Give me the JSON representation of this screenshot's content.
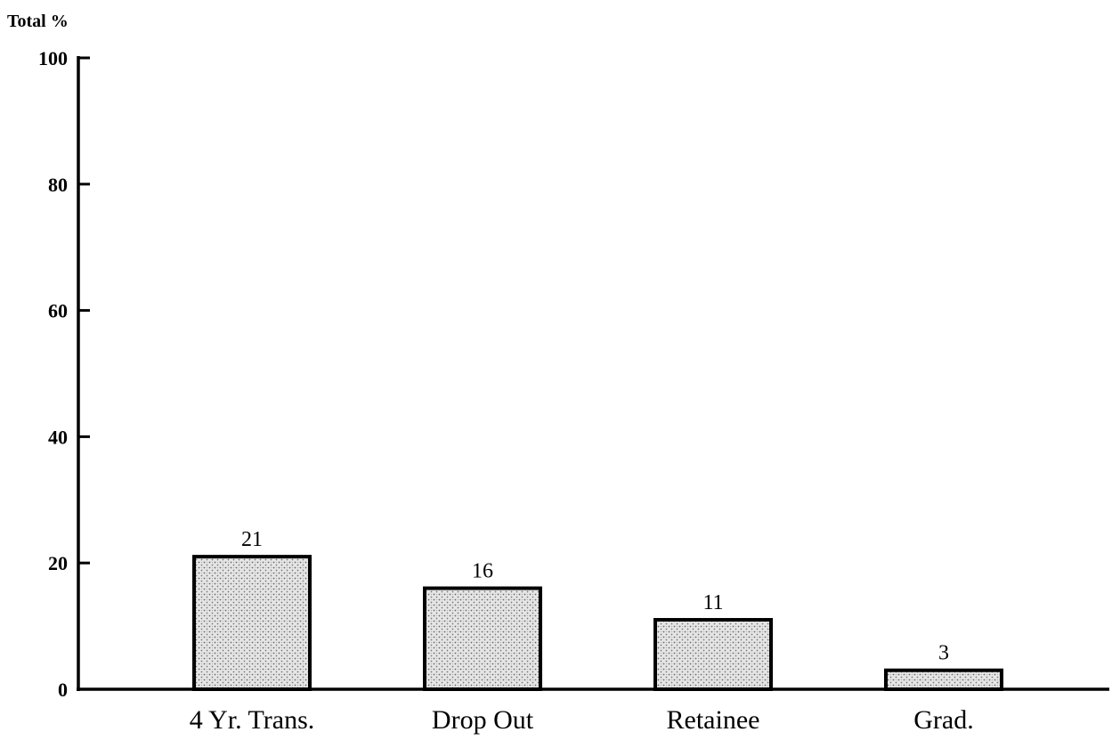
{
  "chart_data": {
    "type": "bar",
    "ylabel": "Total %",
    "xlabel": "",
    "categories": [
      "4 Yr. Trans.",
      "Drop Out",
      "Retainee",
      "Grad."
    ],
    "values": [
      21,
      16,
      11,
      3
    ],
    "data_labels": [
      "21",
      "16",
      "11",
      "3"
    ],
    "ylim": [
      0,
      100
    ],
    "yticks": [
      0,
      20,
      40,
      60,
      80,
      100
    ],
    "ytick_labels": [
      "0",
      "20",
      "40",
      "60",
      "80",
      "100"
    ],
    "grid": false,
    "legend": "none",
    "colors": {
      "bar_fill": "#d8d8d8",
      "bar_stroke": "#000000",
      "axis": "#000000"
    }
  }
}
